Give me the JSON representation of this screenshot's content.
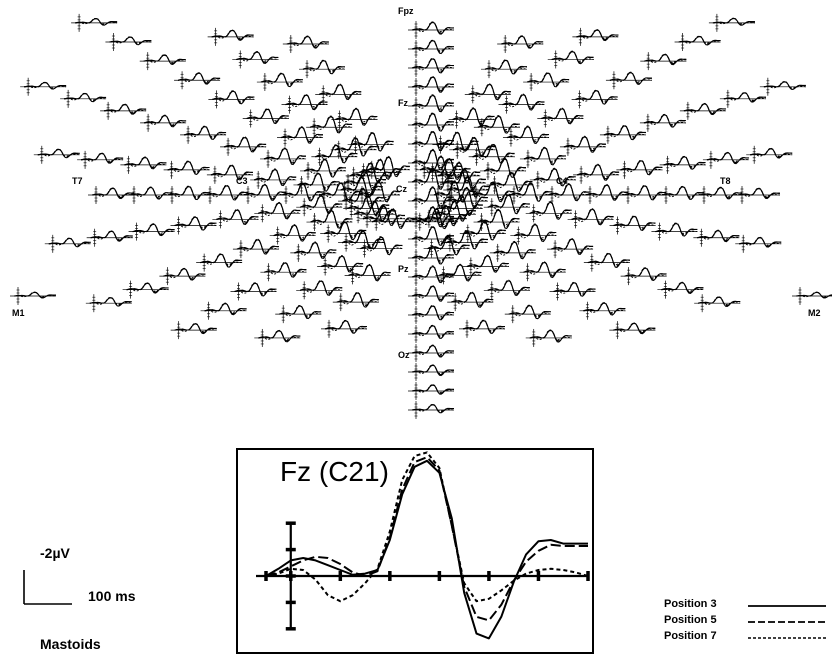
{
  "chart_data": [
    {
      "type": "line",
      "title": "",
      "electrodes": [
        {
          "label": "Fpz"
        },
        {
          "label": "Fz"
        },
        {
          "label": "Cz"
        },
        {
          "label": "Pz"
        },
        {
          "label": "Oz"
        },
        {
          "label": "T7"
        },
        {
          "label": "C3"
        },
        {
          "label": "C4"
        },
        {
          "label": "T8"
        },
        {
          "label": "M1"
        },
        {
          "label": "M2"
        }
      ],
      "series": [
        {
          "name": "Position 3",
          "style": "solid"
        },
        {
          "name": "Position 5",
          "style": "dashed"
        },
        {
          "name": "Position 7",
          "style": "dotted"
        }
      ]
    },
    {
      "type": "line",
      "title": "Fz (C21)",
      "x_unit": "ms",
      "y_unit": "µV",
      "negative_up": true,
      "xlim": [
        -50,
        600
      ],
      "x_ticks": [
        -50,
        0,
        100,
        200,
        300,
        400,
        500,
        600
      ],
      "y_ticks": [
        -2,
        -1,
        0,
        1,
        2
      ],
      "ylim": [
        -10,
        6
      ],
      "x": [
        -50,
        -25,
        0,
        25,
        50,
        75,
        100,
        125,
        150,
        175,
        200,
        225,
        250,
        275,
        300,
        325,
        350,
        375,
        400,
        425,
        450,
        475,
        500,
        525,
        550,
        575,
        600
      ],
      "series": [
        {
          "name": "Position 3",
          "values": [
            0,
            -0.6,
            -1.3,
            -1.5,
            -1.3,
            -0.9,
            -0.5,
            -0.1,
            -0.2,
            -0.5,
            -3.0,
            -6.8,
            -9.1,
            -9.6,
            -8.6,
            -4.8,
            1.4,
            4.8,
            5.2,
            3.4,
            0.5,
            -1.8,
            -2.9,
            -3.0,
            -2.7,
            -2.7,
            -2.7
          ]
        },
        {
          "name": "Position 5",
          "values": [
            0,
            -0.3,
            -0.8,
            -1.3,
            -1.6,
            -1.5,
            -1.0,
            -0.3,
            0.0,
            -0.4,
            -3.2,
            -7.2,
            -9.5,
            -9.9,
            -8.8,
            -4.2,
            0.9,
            3.4,
            3.7,
            2.4,
            0.4,
            -1.2,
            -2.1,
            -2.6,
            -2.5,
            -2.5,
            -2.5
          ]
        },
        {
          "name": "Position 7",
          "values": [
            0,
            -0.2,
            -0.6,
            -0.5,
            0.3,
            1.6,
            2.1,
            1.6,
            0.6,
            -0.6,
            -3.7,
            -8.0,
            -10.0,
            -10.3,
            -9.0,
            -4.2,
            0.6,
            2.1,
            1.9,
            1.2,
            0.4,
            -0.2,
            -0.5,
            -0.6,
            -0.5,
            -0.3,
            0.0
          ]
        }
      ]
    }
  ],
  "scale_bar": {
    "amplitude": "-2µV",
    "time": "100 ms"
  },
  "reference_label": "Mastoids",
  "legend": [
    {
      "label": "Position 3",
      "style": "solid"
    },
    {
      "label": "Position 5",
      "style": "dashed"
    },
    {
      "label": "Position 7",
      "style": "dotted"
    }
  ]
}
